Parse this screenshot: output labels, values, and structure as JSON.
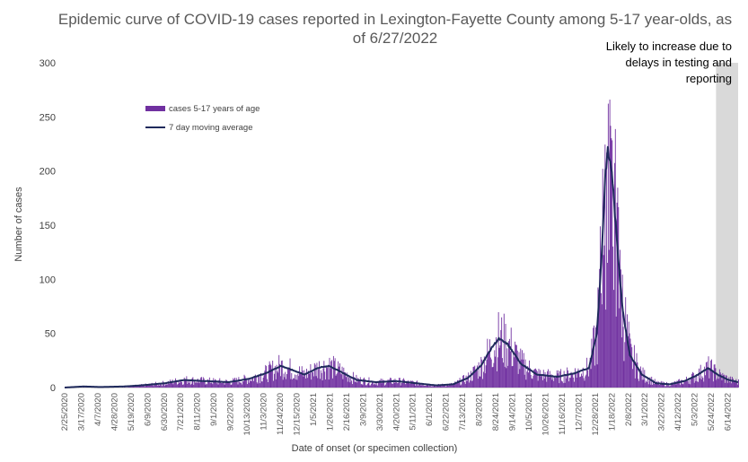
{
  "chart_data": {
    "type": "bar",
    "title_line1": "Epidemic curve of COVID-19 cases reported in Lexington-Fayette County among 5-17 year-olds, as",
    "title_line2": "of 6/27/2022",
    "xlabel": "Date of onset (or specimen collection)",
    "ylabel": "Number of cases",
    "ylim": [
      0,
      300
    ],
    "yticks": [
      "0",
      "50",
      "100",
      "150",
      "200",
      "250",
      "300"
    ],
    "grid": false,
    "legend_position": "top-left",
    "series": [
      {
        "name": "cases 5-17 years of age",
        "kind": "bar",
        "color": "#7030a0"
      },
      {
        "name": "7 day moving average",
        "kind": "line",
        "color": "#1f2a5c"
      }
    ],
    "note_lines": [
      "Likely to increase due to",
      "delays in testing and",
      "reporting"
    ],
    "start_date": "2/25/2020",
    "end_date": "6/27/2022",
    "shade_from": "5/30/2022",
    "xtick_labels": [
      "2/25/2020",
      "3/17/2020",
      "4/7/2020",
      "4/28/2020",
      "5/19/2020",
      "6/9/2020",
      "6/30/2020",
      "7/21/2020",
      "8/11/2020",
      "9/1/2020",
      "9/22/2020",
      "10/13/2020",
      "11/3/2020",
      "11/24/2020",
      "12/15/2020",
      "1/5/2021",
      "1/26/2021",
      "2/16/2021",
      "3/9/2021",
      "3/30/2021",
      "4/20/2021",
      "5/11/2021",
      "6/1/2021",
      "6/22/2021",
      "7/13/2021",
      "8/3/2021",
      "8/24/2021",
      "9/14/2021",
      "10/5/2021",
      "10/26/2021",
      "11/16/2021",
      "12/7/2021",
      "12/28/2021",
      "1/18/2022",
      "2/8/2022",
      "3/1/2022",
      "3/22/2022",
      "4/12/2022",
      "5/3/2022",
      "5/24/2022",
      "6/14/2022"
    ],
    "moving_average_profile": [
      [
        "2/25/2020",
        0
      ],
      [
        "3/20/2020",
        1
      ],
      [
        "4/10/2020",
        0.5
      ],
      [
        "5/10/2020",
        1
      ],
      [
        "6/1/2020",
        2
      ],
      [
        "7/1/2020",
        4
      ],
      [
        "7/25/2020",
        7
      ],
      [
        "8/20/2020",
        6
      ],
      [
        "9/20/2020",
        5
      ],
      [
        "10/15/2020",
        8
      ],
      [
        "11/5/2020",
        13
      ],
      [
        "11/25/2020",
        20
      ],
      [
        "12/10/2020",
        16
      ],
      [
        "12/25/2020",
        12
      ],
      [
        "1/10/2021",
        18
      ],
      [
        "1/25/2021",
        20
      ],
      [
        "2/10/2021",
        14
      ],
      [
        "3/1/2021",
        7
      ],
      [
        "3/25/2021",
        5
      ],
      [
        "4/20/2021",
        6
      ],
      [
        "5/15/2021",
        4
      ],
      [
        "6/10/2021",
        2
      ],
      [
        "7/1/2021",
        3
      ],
      [
        "7/20/2021",
        9
      ],
      [
        "8/5/2021",
        20
      ],
      [
        "8/20/2021",
        38
      ],
      [
        "8/28/2021",
        45
      ],
      [
        "9/8/2021",
        40
      ],
      [
        "9/25/2021",
        22
      ],
      [
        "10/15/2021",
        12
      ],
      [
        "11/10/2021",
        10
      ],
      [
        "12/1/2021",
        13
      ],
      [
        "12/20/2021",
        18
      ],
      [
        "12/30/2021",
        50
      ],
      [
        "1/5/2022",
        120
      ],
      [
        "1/10/2022",
        200
      ],
      [
        "1/13/2022",
        218
      ],
      [
        "1/18/2022",
        200
      ],
      [
        "1/25/2022",
        130
      ],
      [
        "2/1/2022",
        70
      ],
      [
        "2/10/2022",
        30
      ],
      [
        "2/25/2022",
        12
      ],
      [
        "3/15/2022",
        4
      ],
      [
        "4/1/2022",
        3
      ],
      [
        "4/20/2022",
        6
      ],
      [
        "5/5/2022",
        11
      ],
      [
        "5/20/2022",
        18
      ],
      [
        "6/1/2022",
        12
      ],
      [
        "6/15/2022",
        7
      ],
      [
        "6/27/2022",
        5
      ]
    ]
  }
}
